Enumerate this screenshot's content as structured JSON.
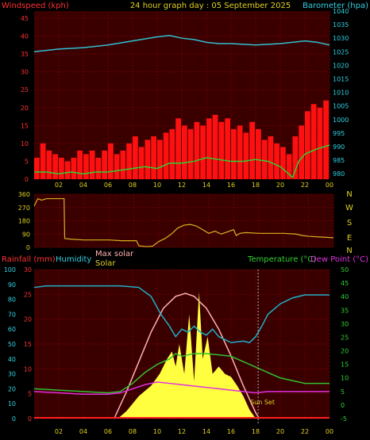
{
  "header": {
    "left": "Windspeed (kph)",
    "center": "24 hour graph day : 05 September 2025",
    "right": "Barometer (hpa)"
  },
  "panel3_labels": {
    "rainfall": "Rainfall (mm)",
    "humidity": "Humidity",
    "max_solar": "Max solar",
    "solar": "Solar",
    "temperature": "Temperature (°C)",
    "dew_point": "Dew Point (°C)",
    "sunset": "Sun Set"
  },
  "colors": {
    "background": "#000000",
    "plot_bg": "#3a0000",
    "grid": "#6a0000",
    "axis_red": "#ff3030",
    "axis_cyan": "#30d0e0",
    "axis_green": "#30d030",
    "axis_yellow": "#e0d020",
    "gust": "#ff1010",
    "wind_avg": "#30d030",
    "barometer": "#30c0d0",
    "direction": "#d8b020",
    "humidity": "#20b0c8",
    "temperature": "#30c030",
    "dew_point": "#e030e0",
    "solar": "#ffff40",
    "max_solar": "#ffb0b0",
    "rain": "#ff2020"
  },
  "chart_data": [
    {
      "type": "line",
      "name": "wind-barometer",
      "x_ticks": [
        "02",
        "04",
        "06",
        "08",
        "10",
        "12",
        "14",
        "16",
        "18",
        "20",
        "22",
        "00"
      ],
      "y_left_ticks": [
        0,
        5,
        10,
        15,
        20,
        25,
        30,
        35,
        40,
        45
      ],
      "y_left_lim": [
        0,
        47
      ],
      "y_right_ticks": [
        980,
        985,
        990,
        995,
        1000,
        1005,
        1010,
        1015,
        1020,
        1025,
        1030,
        1035,
        1040
      ],
      "y_right_lim": [
        978,
        1040
      ],
      "x_lim": [
        0,
        24
      ],
      "gust_bars": [
        [
          0,
          6
        ],
        [
          0.5,
          10
        ],
        [
          1,
          8
        ],
        [
          1.5,
          7
        ],
        [
          2,
          6
        ],
        [
          2.5,
          5
        ],
        [
          3,
          6
        ],
        [
          3.5,
          8
        ],
        [
          4,
          7
        ],
        [
          4.5,
          8
        ],
        [
          5,
          6
        ],
        [
          5.5,
          8
        ],
        [
          6,
          10
        ],
        [
          6.5,
          7
        ],
        [
          7,
          8
        ],
        [
          7.5,
          10
        ],
        [
          8,
          12
        ],
        [
          8.5,
          9
        ],
        [
          9,
          11
        ],
        [
          9.5,
          12
        ],
        [
          10,
          11
        ],
        [
          10.5,
          13
        ],
        [
          11,
          14
        ],
        [
          11.5,
          17
        ],
        [
          12,
          15
        ],
        [
          12.5,
          14
        ],
        [
          13,
          16
        ],
        [
          13.5,
          15
        ],
        [
          14,
          17
        ],
        [
          14.5,
          18
        ],
        [
          15,
          16
        ],
        [
          15.5,
          17
        ],
        [
          16,
          14
        ],
        [
          16.5,
          15
        ],
        [
          17,
          13
        ],
        [
          17.5,
          16
        ],
        [
          18,
          14
        ],
        [
          18.5,
          11
        ],
        [
          19,
          12
        ],
        [
          19.5,
          10
        ],
        [
          20,
          9
        ],
        [
          20.5,
          7
        ],
        [
          21,
          12
        ],
        [
          21.5,
          15
        ],
        [
          22,
          19
        ],
        [
          22.5,
          21
        ],
        [
          23,
          20
        ],
        [
          23.5,
          22
        ]
      ],
      "wind_avg": [
        [
          0,
          2
        ],
        [
          1,
          2
        ],
        [
          2,
          1.5
        ],
        [
          3,
          2
        ],
        [
          4,
          1.5
        ],
        [
          5,
          2
        ],
        [
          6,
          2
        ],
        [
          7,
          2.5
        ],
        [
          8,
          3
        ],
        [
          9,
          3.5
        ],
        [
          10,
          3
        ],
        [
          11,
          4.5
        ],
        [
          12,
          4.5
        ],
        [
          13,
          5
        ],
        [
          14,
          6
        ],
        [
          15,
          5.5
        ],
        [
          16,
          5
        ],
        [
          17,
          5
        ],
        [
          18,
          5.5
        ],
        [
          19,
          5
        ],
        [
          20,
          3.5
        ],
        [
          20.5,
          2
        ],
        [
          21,
          0.5
        ],
        [
          21.5,
          5
        ],
        [
          22,
          7
        ],
        [
          23,
          8.5
        ],
        [
          24,
          9.5
        ]
      ],
      "barometer": [
        [
          0,
          1025
        ],
        [
          2,
          1026
        ],
        [
          4,
          1026.5
        ],
        [
          6,
          1027.5
        ],
        [
          8,
          1029
        ],
        [
          10,
          1030.5
        ],
        [
          11,
          1031
        ],
        [
          12,
          1030
        ],
        [
          13,
          1029.5
        ],
        [
          14,
          1028.5
        ],
        [
          15,
          1028
        ],
        [
          16,
          1028
        ],
        [
          18,
          1027.5
        ],
        [
          20,
          1028
        ],
        [
          22,
          1029
        ],
        [
          23,
          1028.5
        ],
        [
          24,
          1027.5
        ]
      ]
    },
    {
      "type": "line",
      "name": "wind-direction",
      "x_lim": [
        0,
        24
      ],
      "y_ticks": [
        0,
        90,
        180,
        270,
        360
      ],
      "y_lim": [
        0,
        360
      ],
      "right_labels": [
        "N",
        "W",
        "S",
        "E",
        "N"
      ],
      "direction": [
        [
          0,
          280
        ],
        [
          0.3,
          330
        ],
        [
          0.6,
          320
        ],
        [
          1,
          330
        ],
        [
          2.4,
          330
        ],
        [
          2.45,
          60
        ],
        [
          3,
          55
        ],
        [
          4,
          50
        ],
        [
          6,
          50
        ],
        [
          7,
          45
        ],
        [
          8.2,
          45
        ],
        [
          8.4,
          10
        ],
        [
          9,
          5
        ],
        [
          9.5,
          8
        ],
        [
          10,
          40
        ],
        [
          10.5,
          60
        ],
        [
          11,
          90
        ],
        [
          11.5,
          130
        ],
        [
          12,
          150
        ],
        [
          12.5,
          155
        ],
        [
          13,
          145
        ],
        [
          13.5,
          120
        ],
        [
          14,
          95
        ],
        [
          14.5,
          110
        ],
        [
          15,
          90
        ],
        [
          15.5,
          105
        ],
        [
          16,
          120
        ],
        [
          16.2,
          80
        ],
        [
          16.5,
          95
        ],
        [
          17,
          100
        ],
        [
          18,
          95
        ],
        [
          19,
          95
        ],
        [
          20,
          95
        ],
        [
          21,
          90
        ],
        [
          21.5,
          80
        ],
        [
          22,
          75
        ],
        [
          23,
          70
        ],
        [
          24,
          65
        ]
      ]
    },
    {
      "type": "line",
      "name": "temp-humidity-solar",
      "x_lim": [
        0,
        24
      ],
      "x_ticks": [
        "02",
        "04",
        "06",
        "08",
        "10",
        "12",
        "14",
        "16",
        "18",
        "20",
        "22",
        "00"
      ],
      "rain_ticks": [
        0,
        5,
        10,
        15,
        20,
        25,
        30
      ],
      "rain_lim": [
        0,
        30
      ],
      "humidity_ticks": [
        0,
        10,
        20,
        30,
        40,
        50,
        60,
        70,
        80,
        90,
        100
      ],
      "humidity_lim": [
        0,
        100
      ],
      "temp_ticks": [
        -5,
        0,
        5,
        10,
        15,
        20,
        25,
        30,
        35,
        40,
        45,
        50
      ],
      "temp_lim": [
        -5,
        50
      ],
      "humidity": [
        [
          0,
          88
        ],
        [
          1,
          89
        ],
        [
          3,
          89
        ],
        [
          5,
          89
        ],
        [
          7,
          89
        ],
        [
          8.5,
          88
        ],
        [
          9.5,
          82
        ],
        [
          10.3,
          70
        ],
        [
          11,
          62
        ],
        [
          11.5,
          55
        ],
        [
          12,
          60
        ],
        [
          12.5,
          58
        ],
        [
          13,
          62
        ],
        [
          13.5,
          58
        ],
        [
          14,
          56
        ],
        [
          14.5,
          60
        ],
        [
          15,
          55
        ],
        [
          15.5,
          53
        ],
        [
          16,
          51
        ],
        [
          17,
          52
        ],
        [
          17.5,
          51
        ],
        [
          18,
          55
        ],
        [
          18.5,
          62
        ],
        [
          19,
          70
        ],
        [
          20,
          77
        ],
        [
          21,
          81
        ],
        [
          22,
          83
        ],
        [
          23,
          83
        ],
        [
          24,
          83
        ]
      ],
      "temperature": [
        [
          0,
          6
        ],
        [
          2,
          5.5
        ],
        [
          4,
          5
        ],
        [
          6,
          4.5
        ],
        [
          7,
          5
        ],
        [
          8,
          8
        ],
        [
          9,
          12
        ],
        [
          10,
          15
        ],
        [
          11,
          17
        ],
        [
          11.5,
          19
        ],
        [
          12,
          18
        ],
        [
          12.5,
          18.5
        ],
        [
          13,
          19
        ],
        [
          14,
          19
        ],
        [
          15,
          18.5
        ],
        [
          16,
          18
        ],
        [
          17,
          16
        ],
        [
          18,
          14
        ],
        [
          19,
          12
        ],
        [
          20,
          10
        ],
        [
          21,
          9
        ],
        [
          22,
          8
        ],
        [
          23,
          8
        ],
        [
          24,
          8
        ]
      ],
      "dew_point": [
        [
          0,
          5
        ],
        [
          2,
          4.5
        ],
        [
          4,
          4
        ],
        [
          6,
          4
        ],
        [
          7,
          4.5
        ],
        [
          8,
          6
        ],
        [
          9,
          7.5
        ],
        [
          10,
          8.5
        ],
        [
          11,
          8
        ],
        [
          12,
          7.5
        ],
        [
          13,
          7
        ],
        [
          14,
          6.5
        ],
        [
          15,
          6
        ],
        [
          16,
          5.5
        ],
        [
          17,
          5
        ],
        [
          18,
          4.5
        ],
        [
          19,
          5
        ],
        [
          20,
          5
        ],
        [
          21,
          5
        ],
        [
          22,
          5
        ],
        [
          24,
          5
        ]
      ],
      "solar_fraction": [
        [
          6.8,
          0
        ],
        [
          7.5,
          0.05
        ],
        [
          8.5,
          0.15
        ],
        [
          9.5,
          0.22
        ],
        [
          10.2,
          0.3
        ],
        [
          10.8,
          0.4
        ],
        [
          11.2,
          0.45
        ],
        [
          11.5,
          0.35
        ],
        [
          11.8,
          0.5
        ],
        [
          12.2,
          0.3
        ],
        [
          12.6,
          0.7
        ],
        [
          13,
          0.25
        ],
        [
          13.4,
          0.85
        ],
        [
          13.7,
          0.4
        ],
        [
          14.1,
          0.55
        ],
        [
          14.5,
          0.3
        ],
        [
          15,
          0.35
        ],
        [
          15.5,
          0.3
        ],
        [
          16,
          0.28
        ],
        [
          16.5,
          0.22
        ],
        [
          17,
          0.15
        ],
        [
          17.5,
          0.06
        ],
        [
          18,
          0
        ]
      ],
      "max_solar_fraction": [
        [
          6.5,
          0
        ],
        [
          7.5,
          0.18
        ],
        [
          8.5,
          0.38
        ],
        [
          9.5,
          0.58
        ],
        [
          10.5,
          0.74
        ],
        [
          11.5,
          0.82
        ],
        [
          12.3,
          0.84
        ],
        [
          13,
          0.82
        ],
        [
          14,
          0.74
        ],
        [
          15,
          0.6
        ],
        [
          16,
          0.42
        ],
        [
          17,
          0.22
        ],
        [
          18,
          0.04
        ],
        [
          18.3,
          0
        ]
      ],
      "sunset_x": 18.2
    }
  ]
}
